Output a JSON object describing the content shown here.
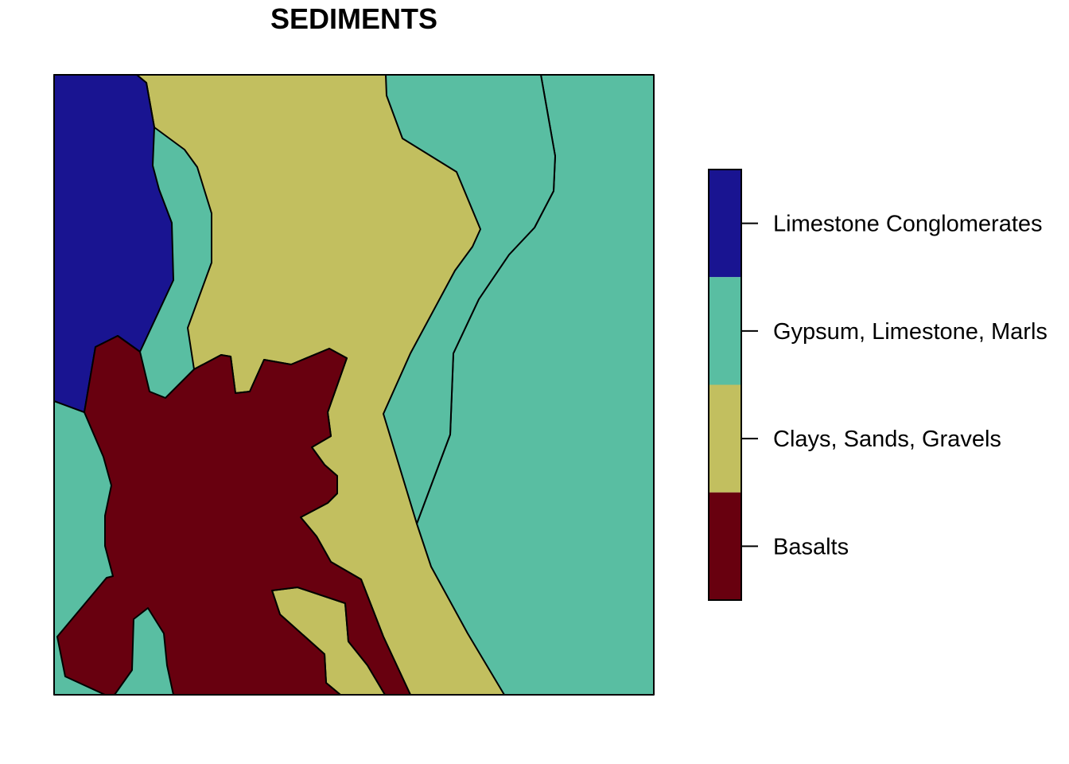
{
  "map": {
    "title": "SEDIMENTS",
    "classes": [
      {
        "label": "Limestone Conglomerates",
        "color": "#191491"
      },
      {
        "label": "Gypsum, Limestone, Marls",
        "color": "#59BEA2"
      },
      {
        "label": "Clays, Sands, Gravels",
        "color": "#C2BF5F"
      },
      {
        "label": "Basalts",
        "color": "#68000F"
      }
    ]
  }
}
